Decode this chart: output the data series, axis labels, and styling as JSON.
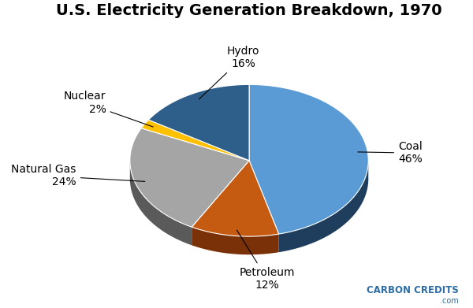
{
  "title": "U.S. Electricity Generation Breakdown, 1970",
  "slices": [
    {
      "label": "Coal",
      "pct": 46,
      "color": "#5B9BD5",
      "top_color": "#5B9BD5",
      "side_color": "#1F3D5C"
    },
    {
      "label": "Petroleum",
      "pct": 12,
      "color": "#C55A11",
      "top_color": "#C55A11",
      "side_color": "#7A3108"
    },
    {
      "label": "Natural Gas",
      "pct": 24,
      "color": "#A5A5A5",
      "top_color": "#A5A5A5",
      "side_color": "#5A5A5A"
    },
    {
      "label": "Nuclear",
      "pct": 2,
      "color": "#FFC000",
      "top_color": "#FFC000",
      "side_color": "#8A6800"
    },
    {
      "label": "Hydro",
      "pct": 16,
      "color": "#2E5E8A",
      "top_color": "#2E5E8A",
      "side_color": "#1A3550"
    }
  ],
  "background_color": "#FFFFFF",
  "title_fontsize": 14,
  "label_fontsize": 10,
  "watermark_text": "CARBON CREDITS",
  "watermark_sub": ".com",
  "watermark_color": "#2E6DA4",
  "startangle": 90,
  "depth": 0.12,
  "fy": 0.5
}
